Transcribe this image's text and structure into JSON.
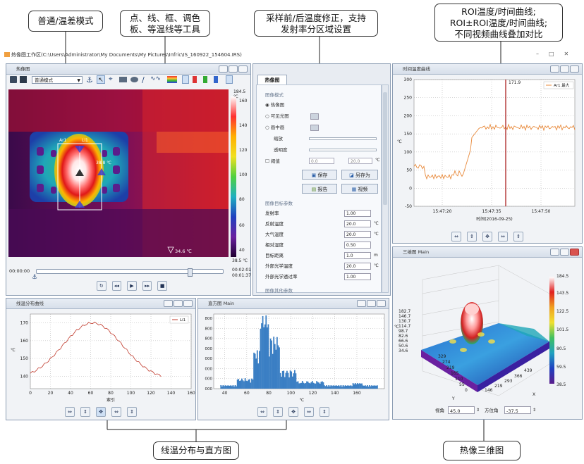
{
  "callouts": {
    "mode": "普通/温差模式",
    "tools": "点、线、框、调色\n板、等温线等工具",
    "correction": "采样前/后温度修正，支持\n发射率分区域设置",
    "curves": "ROI温度/时间曲线;\nROI±ROI温度/时间曲线;\n不同视频曲线叠加对比",
    "linehist": "线温分布与直方图",
    "three_d": "热像三维图"
  },
  "window": {
    "title": "热像图工作区(C:\\Users\\Administrator\\My Documents\\My Pictures\\Infric\\IS_160922_154604.IRS)"
  },
  "thermal": {
    "pane_title": "热像图",
    "mode_select": "普通模式",
    "max_label": "184.5 ℃",
    "min_label": "34.6 ℃",
    "scale_ticks": [
      "160",
      "140",
      "120",
      "100",
      "80",
      "60",
      "40"
    ],
    "scale_bottom": "38.5 ℃",
    "roi_name": "Ar1",
    "line_name": "Li1",
    "spot_label": "38.8 ℃",
    "time_start": "00:00:00",
    "time_end": "00:02:01",
    "time_cur": "00:01:37"
  },
  "props": {
    "tab": "热像图",
    "section_mode": "图像模式",
    "radio_thermal": "热像图",
    "radio_visible": "可见光图",
    "radio_pip": "画中画",
    "zoom_label": "缩放",
    "transparency_label": "透明度",
    "threshold_label": "阈值",
    "threshold_low": "0.0",
    "threshold_high": "20.0",
    "threshold_unit": "℃",
    "save": "保存",
    "save_as": "另存为",
    "report": "报告",
    "video": "视频",
    "section_params": "图像目标参数",
    "rows": [
      {
        "label": "发射率",
        "value": "1.00",
        "unit": ""
      },
      {
        "label": "反射温度",
        "value": "20.0",
        "unit": "℃"
      },
      {
        "label": "大气温度",
        "value": "20.0",
        "unit": "℃"
      },
      {
        "label": "相对湿度",
        "value": "0.50",
        "unit": ""
      },
      {
        "label": "目标距离",
        "value": "1.0",
        "unit": "m"
      },
      {
        "label": "外部光学温度",
        "value": "20.0",
        "unit": "℃"
      },
      {
        "label": "外部光学透过率",
        "value": "1.00",
        "unit": ""
      }
    ],
    "section_other": "图像其他参数"
  },
  "timecurve": {
    "pane_title": "时间温度曲线",
    "legend": "Ar1.最大",
    "marker_value": "171.9",
    "y_axis_label": "℃",
    "x_label": "时间(2016-09-25)",
    "x_ticks": [
      "15:47:20",
      "15:47:35",
      "15:47:50"
    ],
    "y_ticks": [
      "300",
      "250",
      "200",
      "150",
      "100",
      "50",
      "0",
      "-50"
    ]
  },
  "lineprofile": {
    "pane_title": "线温分布曲线",
    "legend": "Li1",
    "y_axis_label": "℃",
    "x_label": "索引",
    "x_ticks": [
      "0",
      "20",
      "40",
      "60",
      "80",
      "100",
      "120",
      "140",
      "160"
    ],
    "y_ticks": [
      "170",
      "160",
      "150",
      "140"
    ]
  },
  "histogram": {
    "pane_title": "直方图 Main",
    "x_label": "℃",
    "x_ticks": [
      "40",
      "60",
      "80",
      "100",
      "120",
      "140",
      "160"
    ],
    "y_ticks": [
      "800",
      "800",
      "800",
      "000",
      "000",
      "000",
      "000",
      "000"
    ]
  },
  "three_d": {
    "pane_title": "三维图 Main",
    "z_ticks": [
      "182.7",
      "146.7",
      "130.7",
      "114.7",
      "98.7",
      "82.6",
      "66.6",
      "50.6",
      "34.6"
    ],
    "colorbar_ticks": [
      "184.5",
      "143.5",
      "122.5",
      "101.5",
      "80.5",
      "59.5",
      "38.5"
    ],
    "x_ticks_left": [
      "329",
      "274",
      "219",
      "165",
      "110",
      "55",
      "0"
    ],
    "x_ticks_right": [
      "146",
      "219",
      "293",
      "366",
      "439"
    ],
    "axis_x": "X",
    "axis_y": "Y",
    "axis_z": "℃",
    "view_angle_label": "视角",
    "view_angle_value": "45.0",
    "azimuth_label": "方位角",
    "azimuth_value": "-37.5"
  },
  "colors": {
    "accent": "#4a7fc0",
    "curve": "#e8893a",
    "profile": "#c0392b",
    "histogram": "#3b7fc4",
    "marker": "#b03030"
  }
}
